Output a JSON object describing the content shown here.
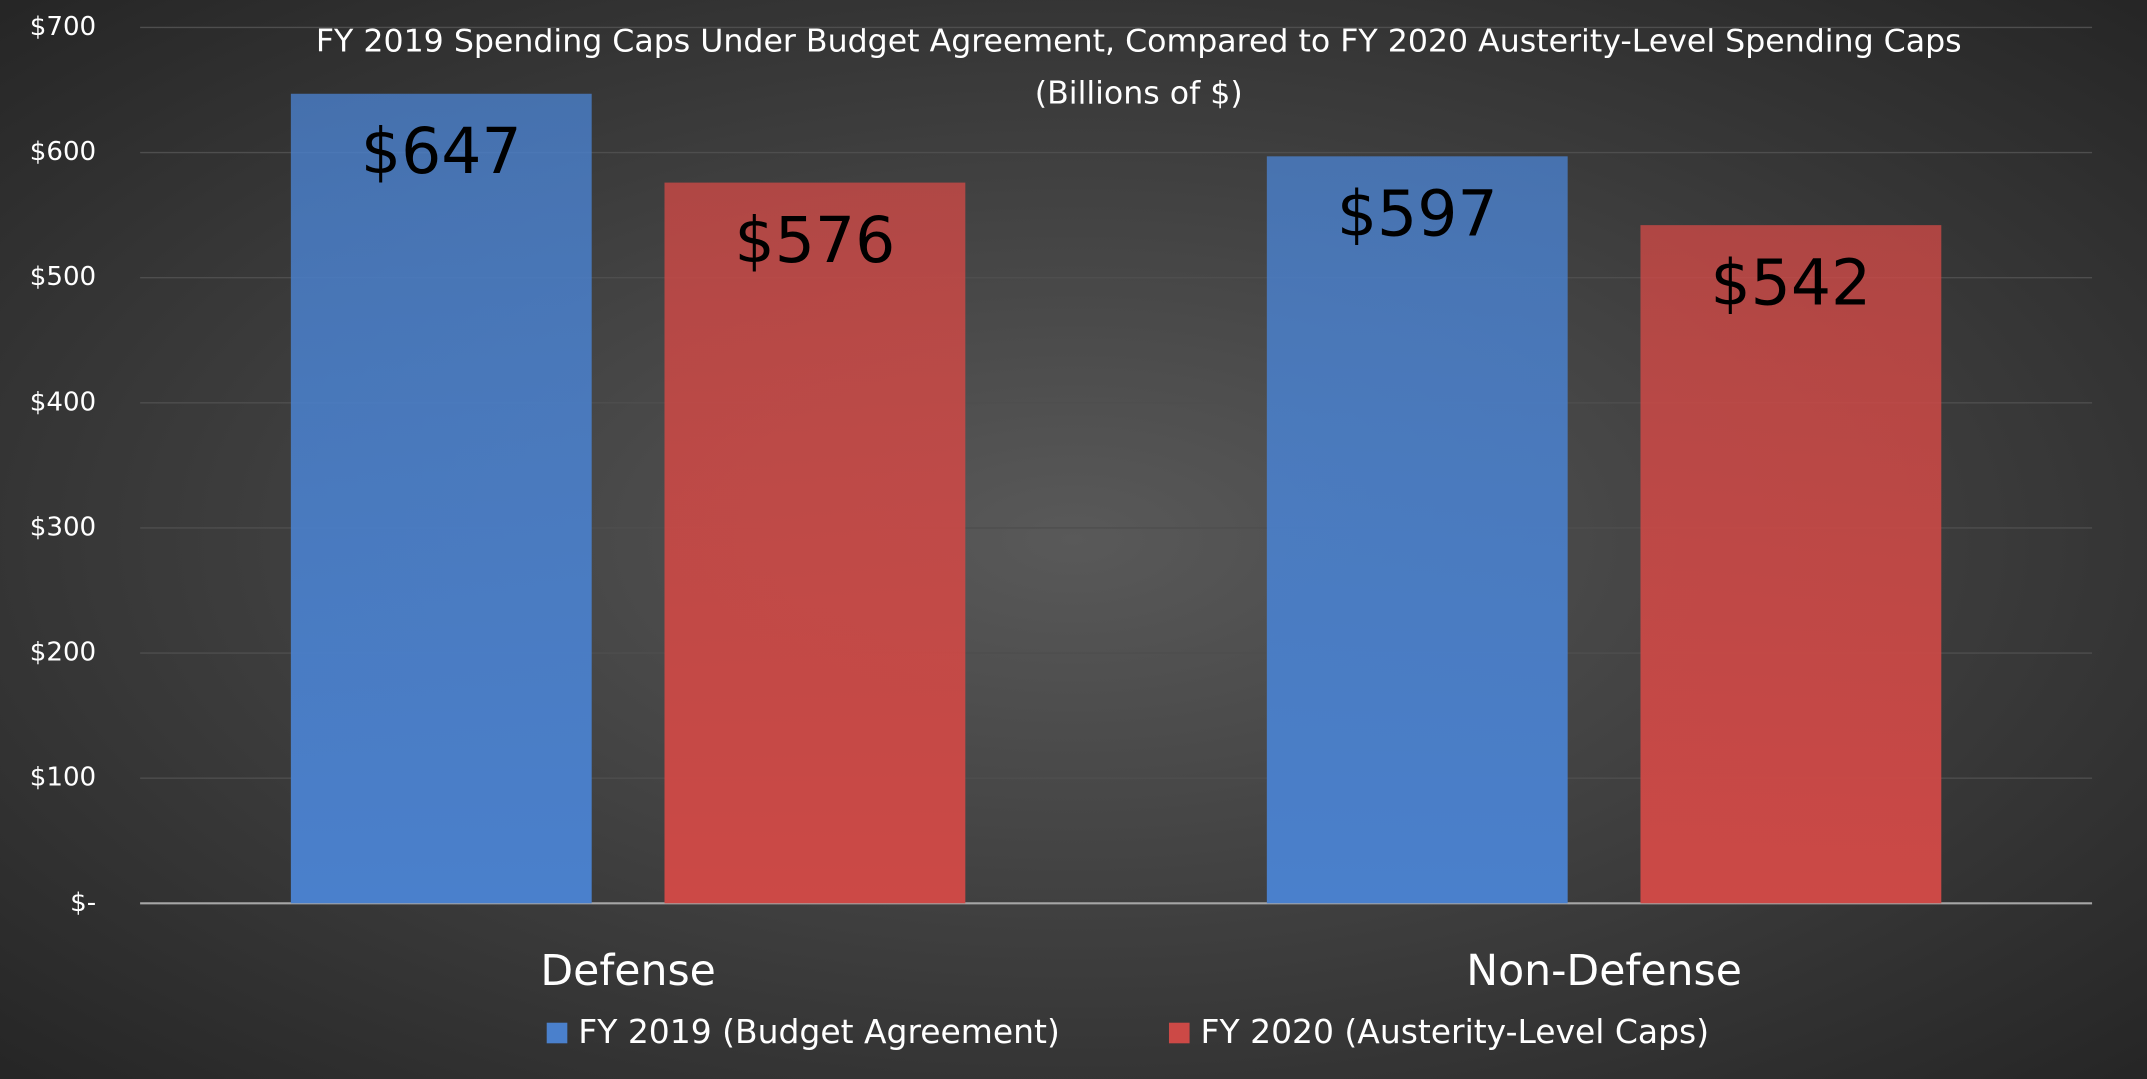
{
  "chart_data": {
    "type": "bar",
    "title": "FY 2019 Spending Caps Under Budget Agreement, Compared to FY 2020 Austerity-Level Spending Caps",
    "subtitle": "(Billions of $)",
    "categories": [
      "Defense",
      "Non-Defense"
    ],
    "series": [
      {
        "name": "FY 2019 (Budget Agreement)",
        "color": "#4a80cc",
        "values": [
          647,
          597
        ],
        "value_labels": [
          "$647",
          "$597"
        ]
      },
      {
        "name": "FY 2020 (Austerity-Level Caps)",
        "color": "#cc4946",
        "values": [
          576,
          542
        ],
        "value_labels": [
          "$576",
          "$542"
        ]
      }
    ],
    "ylim": [
      0,
      700
    ],
    "yticks": [
      {
        "value": 0,
        "label": "$-"
      },
      {
        "value": 100,
        "label": "$100"
      },
      {
        "value": 200,
        "label": "$200"
      },
      {
        "value": 300,
        "label": "$300"
      },
      {
        "value": 400,
        "label": "$400"
      },
      {
        "value": 500,
        "label": "$500"
      },
      {
        "value": 600,
        "label": "$600"
      },
      {
        "value": 700,
        "label": "$700"
      }
    ],
    "grid": true,
    "legend": "bottom"
  }
}
